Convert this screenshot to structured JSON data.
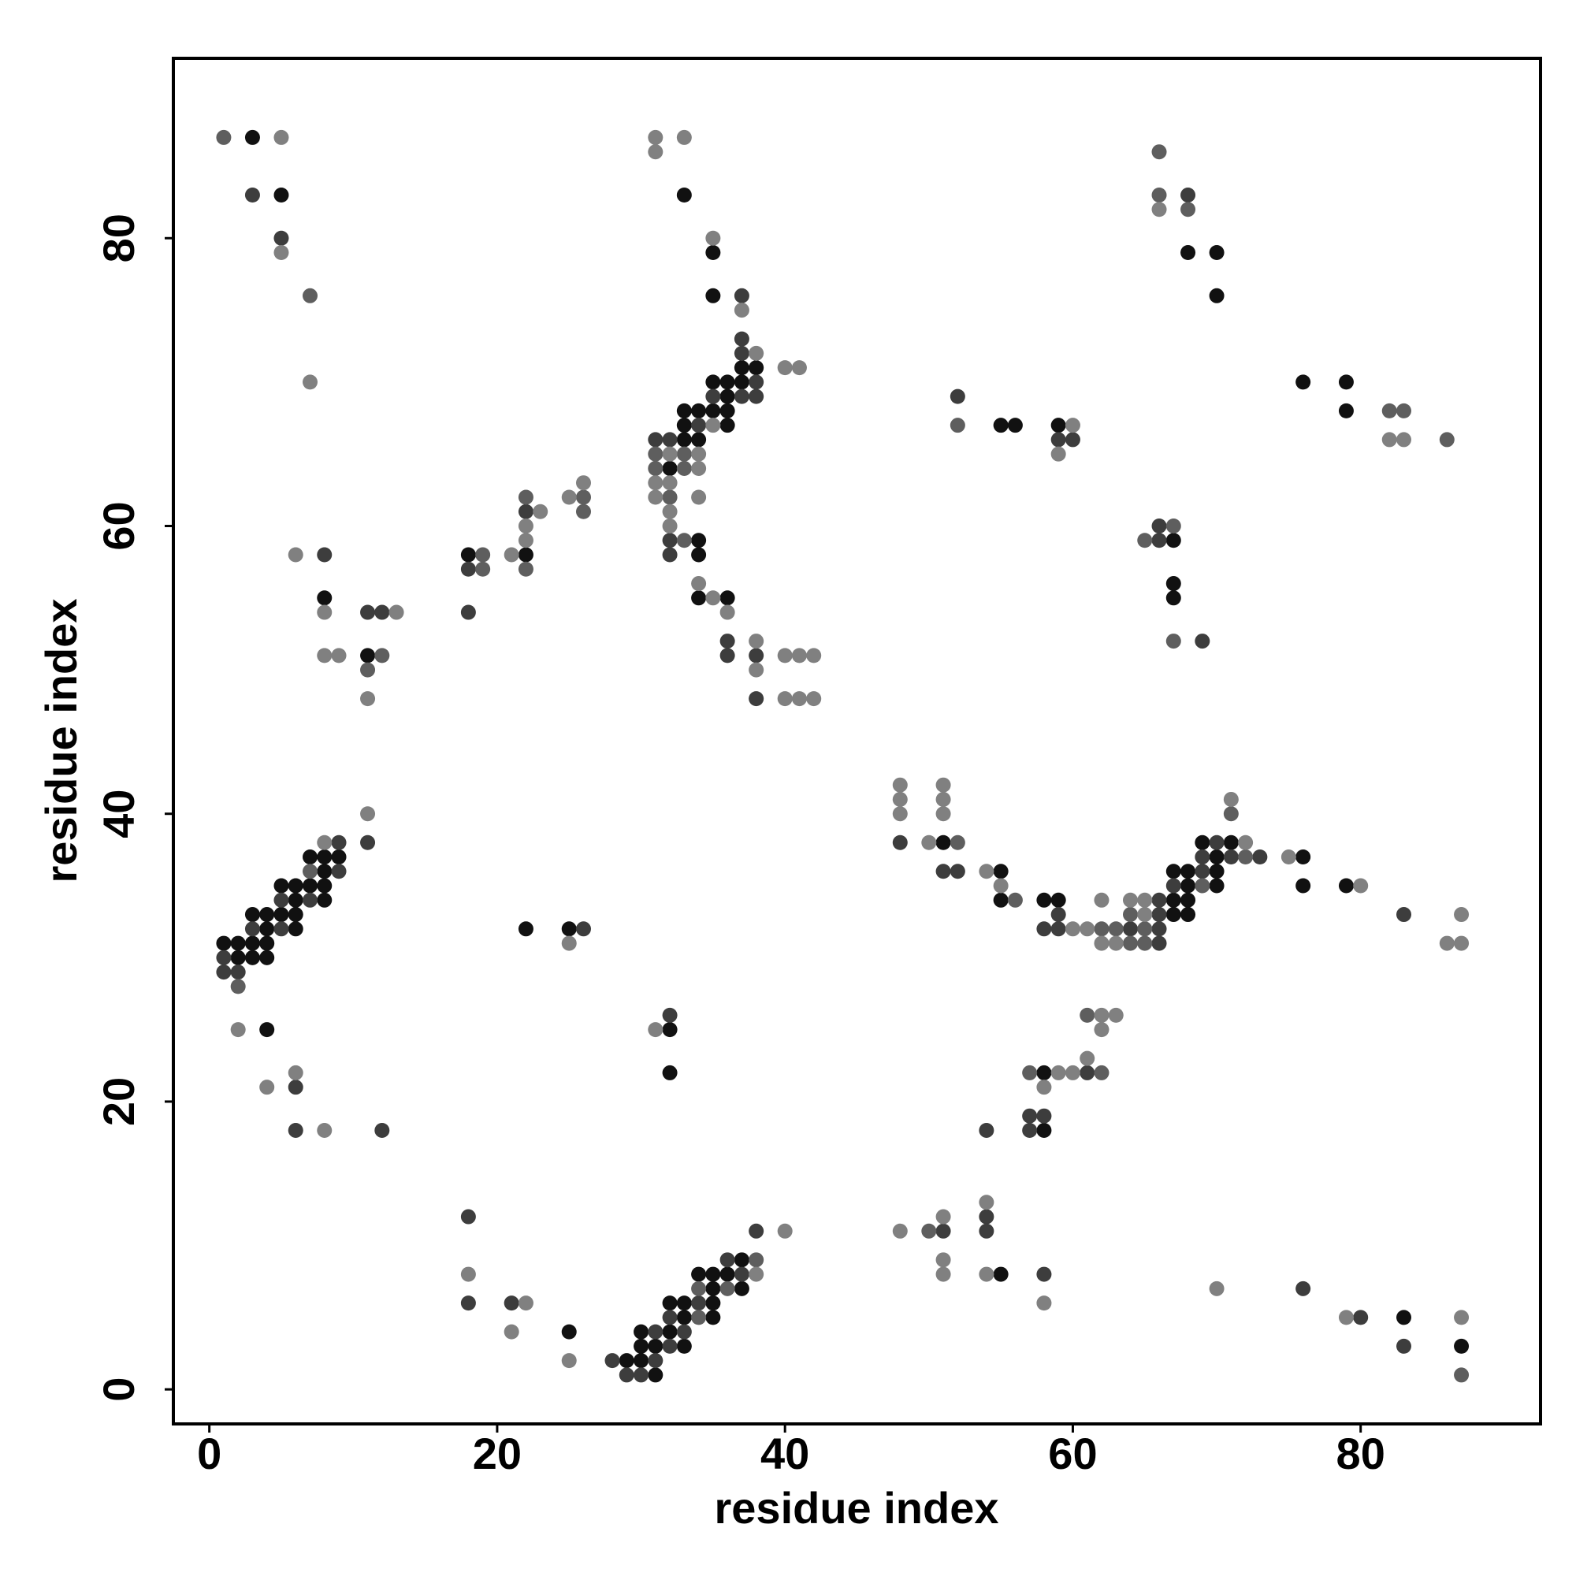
{
  "chart_data": {
    "type": "scatter",
    "x_label": "residue index",
    "y_label": "residue index",
    "xlim": [
      -2.5,
      92.5
    ],
    "ylim": [
      -2.4,
      92.5
    ],
    "xticks": [
      0,
      20,
      40,
      60,
      80
    ],
    "yticks": [
      0,
      20,
      40,
      60,
      80
    ],
    "series": [
      {
        "color": "#111111",
        "x": [
          3,
          5,
          8,
          11,
          2,
          3,
          4,
          1,
          2,
          3,
          4,
          4,
          6,
          3,
          4,
          5,
          6,
          6,
          8,
          5,
          6,
          7,
          8,
          8,
          7,
          8,
          9,
          4,
          18,
          22,
          22,
          25,
          33,
          35,
          35,
          37,
          38,
          35,
          36,
          37,
          36,
          33,
          34,
          35,
          36,
          33,
          36,
          33,
          34,
          32,
          34,
          34,
          34,
          36,
          32,
          32,
          25,
          31,
          29,
          30,
          30,
          31,
          33,
          30,
          32,
          33,
          35,
          32,
          33,
          35,
          35,
          37,
          34,
          35,
          36,
          37,
          51,
          55,
          55,
          58,
          59,
          67,
          68,
          68,
          67,
          68,
          67,
          68,
          70,
          70,
          69,
          71,
          70,
          76,
          76,
          79,
          55,
          56,
          59,
          68,
          70,
          70,
          76,
          79,
          79,
          67,
          67,
          67,
          58,
          58,
          55,
          83,
          87
        ],
        "values": [
          87,
          83,
          55,
          51,
          30,
          30,
          30,
          31,
          31,
          31,
          31,
          32,
          32,
          33,
          33,
          33,
          33,
          34,
          34,
          35,
          35,
          35,
          35,
          36,
          37,
          37,
          37,
          25,
          58,
          58,
          32,
          32,
          83,
          79,
          76,
          71,
          71,
          70,
          70,
          70,
          69,
          68,
          68,
          68,
          68,
          67,
          67,
          66,
          66,
          64,
          59,
          58,
          55,
          55,
          25,
          22,
          4,
          1,
          2,
          2,
          3,
          3,
          3,
          4,
          4,
          5,
          5,
          6,
          6,
          6,
          7,
          7,
          8,
          8,
          8,
          9,
          38,
          36,
          34,
          34,
          34,
          34,
          34,
          35,
          33,
          33,
          36,
          36,
          35,
          37,
          38,
          38,
          36,
          37,
          35,
          35,
          67,
          67,
          67,
          79,
          79,
          76,
          70,
          70,
          68,
          59,
          56,
          55,
          22,
          18,
          8,
          5,
          3
        ]
      },
      {
        "color": "#3d3d3d",
        "x": [
          3,
          5,
          8,
          11,
          12,
          1,
          2,
          1,
          3,
          5,
          5,
          7,
          9,
          9,
          11,
          6,
          6,
          12,
          18,
          18,
          22,
          26,
          37,
          37,
          37,
          38,
          35,
          37,
          38,
          34,
          31,
          32,
          32,
          32,
          36,
          36,
          38,
          38,
          32,
          18,
          18,
          21,
          29,
          30,
          28,
          31,
          32,
          31,
          33,
          32,
          34,
          37,
          36,
          38,
          48,
          51,
          52,
          59,
          58,
          59,
          66,
          64,
          66,
          66,
          66,
          67,
          69,
          69,
          71,
          73,
          70,
          83,
          52,
          59,
          60,
          68,
          66,
          66,
          69,
          61,
          57,
          58,
          57,
          54,
          51,
          54,
          54,
          58,
          76,
          80,
          83
        ],
        "values": [
          83,
          80,
          58,
          54,
          54,
          29,
          29,
          30,
          32,
          32,
          34,
          34,
          36,
          38,
          38,
          21,
          18,
          18,
          57,
          54,
          61,
          32,
          76,
          73,
          72,
          70,
          69,
          69,
          69,
          67,
          66,
          66,
          59,
          58,
          52,
          51,
          51,
          48,
          26,
          12,
          6,
          6,
          1,
          1,
          2,
          2,
          3,
          4,
          4,
          5,
          6,
          8,
          9,
          11,
          38,
          36,
          36,
          33,
          32,
          32,
          31,
          32,
          32,
          33,
          34,
          35,
          36,
          37,
          37,
          37,
          38,
          33,
          69,
          66,
          66,
          83,
          59,
          60,
          52,
          22,
          19,
          19,
          18,
          18,
          11,
          12,
          11,
          8,
          7,
          5,
          3
        ]
      },
      {
        "color": "#5e5e5e",
        "x": [
          1,
          7,
          12,
          11,
          2,
          7,
          19,
          19,
          22,
          22,
          26,
          26,
          31,
          33,
          31,
          33,
          32,
          33,
          34,
          34,
          36,
          38,
          52,
          56,
          62,
          63,
          64,
          65,
          64,
          65,
          69,
          72,
          71,
          52,
          82,
          83,
          86,
          66,
          66,
          68,
          65,
          67,
          67,
          61,
          62,
          57,
          50,
          87
        ],
        "values": [
          87,
          76,
          51,
          50,
          28,
          36,
          58,
          57,
          57,
          62,
          62,
          61,
          65,
          65,
          64,
          64,
          62,
          59,
          5,
          7,
          7,
          9,
          38,
          34,
          32,
          32,
          31,
          31,
          33,
          32,
          35,
          37,
          40,
          67,
          68,
          68,
          66,
          86,
          83,
          82,
          59,
          60,
          52,
          26,
          22,
          22,
          11,
          1
        ]
      },
      {
        "color": "#808080",
        "x": [
          5,
          5,
          7,
          6,
          8,
          8,
          9,
          13,
          11,
          8,
          11,
          2,
          4,
          6,
          8,
          21,
          22,
          22,
          23,
          25,
          26,
          25,
          31,
          33,
          31,
          35,
          37,
          38,
          35,
          32,
          34,
          34,
          31,
          32,
          31,
          34,
          32,
          32,
          34,
          35,
          36,
          38,
          38,
          40,
          41,
          42,
          40,
          41,
          42,
          40,
          41,
          31,
          18,
          22,
          21,
          25,
          38,
          40,
          48,
          48,
          48,
          51,
          51,
          51,
          50,
          54,
          55,
          60,
          61,
          62,
          62,
          63,
          64,
          65,
          65,
          72,
          71,
          75,
          80,
          86,
          87,
          87,
          60,
          59,
          66,
          82,
          83,
          62,
          63,
          62,
          61,
          60,
          59,
          58,
          48,
          51,
          51,
          51,
          54,
          54,
          58,
          70,
          79,
          87
        ],
        "values": [
          87,
          79,
          70,
          58,
          54,
          51,
          51,
          54,
          48,
          38,
          40,
          25,
          21,
          22,
          18,
          58,
          60,
          59,
          61,
          62,
          63,
          31,
          87,
          87,
          86,
          80,
          75,
          72,
          67,
          65,
          65,
          64,
          63,
          63,
          62,
          62,
          61,
          60,
          56,
          55,
          54,
          52,
          50,
          51,
          51,
          51,
          48,
          48,
          48,
          71,
          71,
          25,
          8,
          6,
          4,
          2,
          8,
          11,
          42,
          41,
          40,
          42,
          41,
          40,
          38,
          36,
          35,
          32,
          32,
          34,
          31,
          31,
          34,
          34,
          33,
          38,
          41,
          37,
          35,
          31,
          31,
          33,
          67,
          65,
          82,
          66,
          66,
          26,
          26,
          25,
          23,
          22,
          22,
          21,
          11,
          12,
          9,
          8,
          13,
          8,
          6,
          7,
          5,
          5
        ]
      }
    ]
  }
}
